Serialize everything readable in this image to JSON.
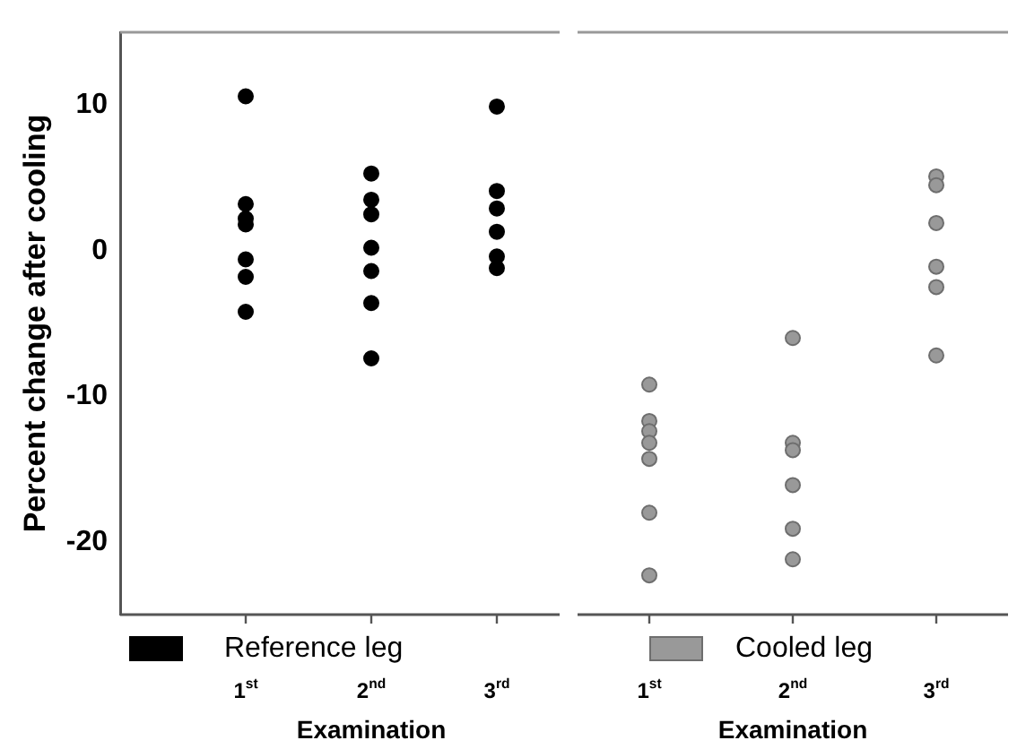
{
  "chart_data": [
    {
      "type": "scatter",
      "ylabel": "Percent change after cooling",
      "xlabel": "Examination",
      "categories": [
        "1$^{st}$",
        "2$^{nd}$",
        "3$^{rd}$"
      ],
      "series": [
        {
          "name": "Reference leg",
          "color": "#000000",
          "x": [
            "1$^{st}$",
            "1$^{st}$",
            "1$^{st}$",
            "1$^{st}$",
            "1$^{st}$",
            "1$^{st}$",
            "1$^{st}$",
            "2$^{nd}$",
            "2$^{nd}$",
            "2$^{nd}$",
            "2$^{nd}$",
            "2$^{nd}$",
            "2$^{nd}$",
            "2$^{nd}$",
            "3$^{rd}$",
            "3$^{rd}$",
            "3$^{rd}$",
            "3$^{rd}$",
            "3$^{rd}$",
            "3$^{rd}$"
          ],
          "values": [
            10.6,
            3.2,
            2.2,
            1.8,
            -0.6,
            -1.8,
            -4.2,
            5.3,
            3.5,
            2.5,
            0.2,
            -1.4,
            -3.6,
            -7.4,
            9.9,
            4.1,
            2.9,
            1.3,
            -0.4,
            -1.2
          ]
        }
      ],
      "ylim": [
        -25,
        15
      ],
      "yticks": [
        -20,
        -10,
        0,
        10
      ],
      "grid": false,
      "legend": "bottom",
      "marker": "circle"
    },
    {
      "type": "scatter",
      "xlabel": "Examination",
      "categories": [
        "1$^{st}$",
        "2$^{nd}$",
        "3$^{rd}$"
      ],
      "series": [
        {
          "name": "Cooled leg",
          "color": "#999999",
          "x": [
            "1$^{st}$",
            "1$^{st}$",
            "1$^{st}$",
            "1$^{st}$",
            "1$^{st}$",
            "1$^{st}$",
            "1$^{st}$",
            "2$^{nd}$",
            "2$^{nd}$",
            "2$^{nd}$",
            "2$^{nd}$",
            "2$^{nd}$",
            "2$^{nd}$",
            "3$^{rd}$",
            "3$^{rd}$",
            "3$^{rd}$",
            "3$^{rd}$",
            "3$^{rd}$",
            "3$^{rd}$"
          ],
          "values": [
            -9.2,
            -11.7,
            -12.4,
            -13.2,
            -14.3,
            -18.0,
            -22.3,
            -6.0,
            -13.2,
            -13.7,
            -16.1,
            -19.1,
            -21.2,
            5.1,
            4.5,
            1.9,
            -1.1,
            -2.5,
            -7.2
          ]
        }
      ],
      "ylim": [
        -25,
        15
      ],
      "tick_labels": "x",
      "grid": false,
      "legend": "bottom",
      "marker": "circle"
    }
  ]
}
